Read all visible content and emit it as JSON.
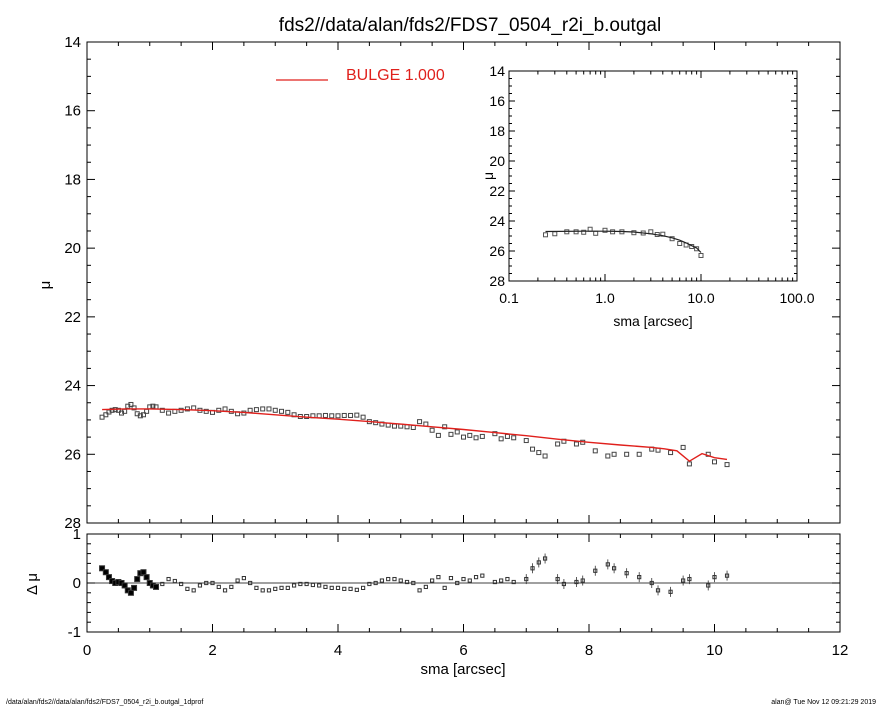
{
  "footer": {
    "left": "/data/alan/fds2//data/alan/fds2/FDS7_0504_r2i_b.outgal_1dprof",
    "right": "alan@  Tue Nov 12 09:21:29 2019"
  },
  "colors": {
    "model": "#e0201c",
    "data": "#444444",
    "axes": "#000000"
  },
  "chart_data": [
    {
      "id": "main",
      "type": "scatter",
      "title": "fds2//data/alan/fds2/FDS7_0504_r2i_b.outgal",
      "xlabel": "",
      "ylabel": "μ",
      "xlim": [
        0,
        12
      ],
      "ylim": [
        28,
        14
      ],
      "y_inverted": true,
      "xticks": [
        0,
        2,
        4,
        6,
        8,
        10,
        12
      ],
      "yticks": [
        14,
        16,
        18,
        20,
        22,
        24,
        26,
        28
      ],
      "legend": {
        "position": "top-center",
        "label": "BULGE  1.000"
      },
      "series": [
        {
          "name": "BULGE  1.000",
          "kind": "line",
          "x": [
            0.24,
            0.6,
            1.0,
            1.5,
            2.0,
            2.5,
            3.0,
            3.5,
            4.0,
            4.5,
            5.0,
            5.5,
            6.0,
            6.5,
            7.0,
            7.5,
            8.0,
            8.5,
            9.0,
            9.2,
            9.4,
            9.6,
            9.8,
            10.0,
            10.2
          ],
          "y": [
            24.7,
            24.68,
            24.68,
            24.7,
            24.73,
            24.78,
            24.85,
            24.92,
            24.98,
            25.05,
            25.12,
            25.2,
            25.28,
            25.37,
            25.46,
            25.56,
            25.65,
            25.73,
            25.8,
            25.84,
            25.9,
            26.2,
            25.98,
            26.1,
            26.15
          ]
        },
        {
          "kind": "points",
          "x": [
            0.24,
            0.3,
            0.35,
            0.4,
            0.45,
            0.5,
            0.55,
            0.6,
            0.65,
            0.7,
            0.75,
            0.8,
            0.85,
            0.9,
            0.95,
            1.0,
            1.05,
            1.1,
            1.2,
            1.3,
            1.4,
            1.5,
            1.6,
            1.7,
            1.8,
            1.9,
            2.0,
            2.1,
            2.2,
            2.3,
            2.4,
            2.5,
            2.6,
            2.7,
            2.8,
            2.9,
            3.0,
            3.1,
            3.2,
            3.3,
            3.4,
            3.5,
            3.6,
            3.7,
            3.8,
            3.9,
            4.0,
            4.1,
            4.2,
            4.3,
            4.4,
            4.5,
            4.6,
            4.7,
            4.8,
            4.9,
            5.0,
            5.1,
            5.2,
            5.3,
            5.4,
            5.5,
            5.6,
            5.7,
            5.8,
            5.9,
            6.0,
            6.1,
            6.2,
            6.3,
            6.5,
            6.6,
            6.7,
            6.8,
            7.0,
            7.1,
            7.2,
            7.3,
            7.5,
            7.6,
            7.8,
            7.9,
            8.1,
            8.3,
            8.4,
            8.6,
            8.8,
            9.0,
            9.1,
            9.3,
            9.5,
            9.6,
            9.9,
            10.0,
            10.2
          ],
          "y": [
            24.92,
            24.85,
            24.77,
            24.72,
            24.7,
            24.72,
            24.8,
            24.75,
            24.6,
            24.55,
            24.65,
            24.82,
            24.88,
            24.85,
            24.75,
            24.62,
            24.6,
            24.62,
            24.72,
            24.8,
            24.75,
            24.72,
            24.68,
            24.65,
            24.72,
            24.75,
            24.78,
            24.72,
            24.68,
            24.75,
            24.82,
            24.8,
            24.72,
            24.7,
            24.68,
            24.68,
            24.72,
            24.75,
            24.78,
            24.85,
            24.9,
            24.9,
            24.88,
            24.88,
            24.87,
            24.88,
            24.88,
            24.87,
            24.87,
            24.86,
            24.92,
            25.05,
            25.08,
            25.12,
            25.15,
            25.18,
            25.18,
            25.2,
            25.22,
            25.05,
            25.12,
            25.3,
            25.45,
            25.2,
            25.42,
            25.35,
            25.5,
            25.45,
            25.52,
            25.48,
            25.4,
            25.55,
            25.48,
            25.52,
            25.6,
            25.85,
            25.95,
            26.05,
            25.7,
            25.62,
            25.7,
            25.65,
            25.9,
            26.05,
            26.0,
            26.0,
            26.0,
            25.85,
            25.88,
            25.95,
            25.8,
            26.28,
            26.0,
            26.22,
            26.3
          ]
        }
      ]
    },
    {
      "id": "residual",
      "type": "scatter",
      "title": "",
      "xlabel": "sma [arcsec]",
      "ylabel": "Δ μ",
      "xlim": [
        0,
        12
      ],
      "ylim": [
        -1,
        1
      ],
      "xticks": [
        0,
        2,
        4,
        6,
        8,
        10,
        12
      ],
      "yticks": [
        -1,
        0,
        1
      ],
      "zero_line": true,
      "series": [
        {
          "kind": "points",
          "x": [
            0.24,
            0.3,
            0.35,
            0.4,
            0.45,
            0.5,
            0.55,
            0.6,
            0.65,
            0.7,
            0.75,
            0.8,
            0.85,
            0.9,
            0.95,
            1.0,
            1.05,
            1.1,
            1.2,
            1.3,
            1.4,
            1.5,
            1.6,
            1.7,
            1.8,
            1.9,
            2.0,
            2.1,
            2.2,
            2.3,
            2.4,
            2.5,
            2.6,
            2.7,
            2.8,
            2.9,
            3.0,
            3.1,
            3.2,
            3.3,
            3.4,
            3.5,
            3.6,
            3.7,
            3.8,
            3.9,
            4.0,
            4.1,
            4.2,
            4.3,
            4.4,
            4.5,
            4.6,
            4.7,
            4.8,
            4.9,
            5.0,
            5.1,
            5.2,
            5.3,
            5.4,
            5.5,
            5.6,
            5.7,
            5.8,
            5.9,
            6.0,
            6.1,
            6.2,
            6.3,
            6.5,
            6.6,
            6.7,
            6.8,
            7.0,
            7.1,
            7.2,
            7.3,
            7.5,
            7.6,
            7.8,
            7.9,
            8.1,
            8.3,
            8.4,
            8.6,
            8.8,
            9.0,
            9.1,
            9.3,
            9.5,
            9.6,
            9.9,
            10.0,
            10.2
          ],
          "y": [
            0.3,
            0.22,
            0.12,
            0.04,
            0.0,
            0.02,
            0.0,
            -0.05,
            -0.15,
            -0.2,
            -0.1,
            0.08,
            0.2,
            0.22,
            0.12,
            0.0,
            -0.05,
            -0.08,
            -0.02,
            0.08,
            0.04,
            -0.02,
            -0.12,
            -0.15,
            -0.05,
            0.0,
            0.0,
            -0.08,
            -0.15,
            -0.08,
            0.05,
            0.1,
            0.0,
            -0.1,
            -0.15,
            -0.15,
            -0.12,
            -0.1,
            -0.1,
            -0.05,
            -0.02,
            -0.02,
            -0.04,
            -0.05,
            -0.08,
            -0.1,
            -0.1,
            -0.12,
            -0.12,
            -0.14,
            -0.1,
            -0.02,
            0.0,
            0.05,
            0.08,
            0.08,
            0.05,
            0.02,
            0.0,
            -0.15,
            -0.08,
            0.05,
            0.12,
            -0.1,
            0.1,
            0.0,
            0.08,
            0.05,
            0.12,
            0.15,
            0.02,
            0.05,
            0.08,
            0.02,
            0.08,
            0.3,
            0.42,
            0.5,
            0.08,
            -0.02,
            0.02,
            0.05,
            0.25,
            0.38,
            0.3,
            0.2,
            0.12,
            0.0,
            -0.15,
            -0.18,
            0.05,
            0.08,
            -0.05,
            0.12,
            0.15
          ]
        }
      ]
    },
    {
      "id": "inset",
      "type": "scatter",
      "title": "",
      "xlabel": "sma [arcsec]",
      "ylabel": "μ",
      "xscale": "log",
      "xlim": [
        0.1,
        100.0
      ],
      "ylim": [
        28,
        14
      ],
      "y_inverted": true,
      "xticklabels": [
        "0.1",
        "1.0",
        "10.0",
        "100.0"
      ],
      "xticks": [
        0.1,
        1.0,
        10.0,
        100.0
      ],
      "yticks": [
        14,
        16,
        18,
        20,
        22,
        24,
        26,
        28
      ],
      "series": [
        {
          "kind": "points",
          "x": [
            0.24,
            0.3,
            0.4,
            0.5,
            0.6,
            0.7,
            0.8,
            1.0,
            1.2,
            1.5,
            2.0,
            2.5,
            3.0,
            3.5,
            4.0,
            5.0,
            6.0,
            7.0,
            8.0,
            9.0,
            10.0
          ],
          "y": [
            24.92,
            24.85,
            24.72,
            24.72,
            24.75,
            24.55,
            24.82,
            24.62,
            24.72,
            24.72,
            24.78,
            24.8,
            24.72,
            24.9,
            24.88,
            25.18,
            25.5,
            25.6,
            25.7,
            25.85,
            26.3
          ]
        },
        {
          "kind": "line",
          "x": [
            0.24,
            0.6,
            1.0,
            1.5,
            2.0,
            3.0,
            4.0,
            5.0,
            6.0,
            7.0,
            8.0,
            9.0,
            10.0
          ],
          "y": [
            24.7,
            24.68,
            24.68,
            24.7,
            24.73,
            24.85,
            24.98,
            25.12,
            25.28,
            25.46,
            25.65,
            25.8,
            26.1
          ]
        }
      ]
    }
  ]
}
